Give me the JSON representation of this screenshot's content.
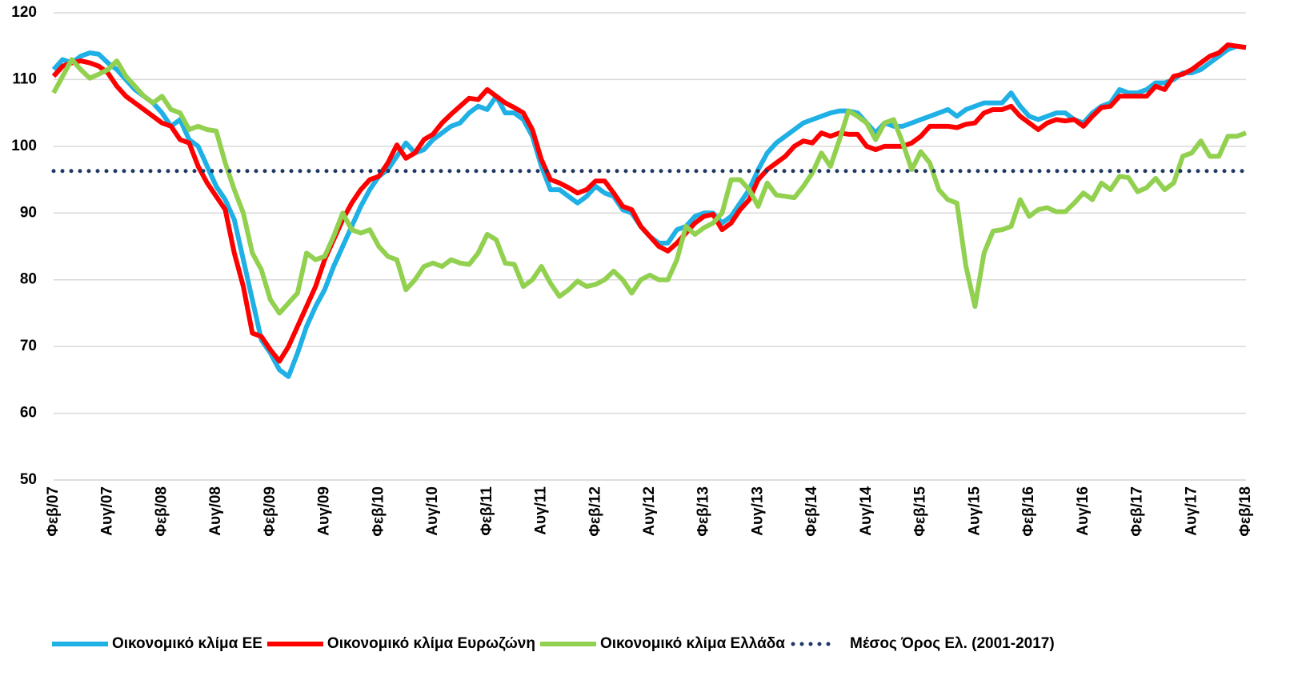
{
  "chart_data": {
    "type": "line",
    "categories": [
      "Φεβ/07",
      null,
      null,
      null,
      null,
      null,
      "Αυγ/07",
      null,
      null,
      null,
      null,
      null,
      "Φεβ/08",
      null,
      null,
      null,
      null,
      null,
      "Αυγ/08",
      null,
      null,
      null,
      null,
      null,
      "Φεβ/09",
      null,
      null,
      null,
      null,
      null,
      "Αυγ/09",
      null,
      null,
      null,
      null,
      null,
      "Φεβ/10",
      null,
      null,
      null,
      null,
      null,
      "Αυγ/10",
      null,
      null,
      null,
      null,
      null,
      "Φεβ/11",
      null,
      null,
      null,
      null,
      null,
      "Αυγ/11",
      null,
      null,
      null,
      null,
      null,
      "Φεβ/12",
      null,
      null,
      null,
      null,
      null,
      "Αυγ/12",
      null,
      null,
      null,
      null,
      null,
      "Φεβ/13",
      null,
      null,
      null,
      null,
      null,
      "Αυγ/13",
      null,
      null,
      null,
      null,
      null,
      "Φεβ/14",
      null,
      null,
      null,
      null,
      null,
      "Αυγ/14",
      null,
      null,
      null,
      null,
      null,
      "Φεβ/15",
      null,
      null,
      null,
      null,
      null,
      "Αυγ/15",
      null,
      null,
      null,
      null,
      null,
      "Φεβ/16",
      null,
      null,
      null,
      null,
      null,
      "Αυγ/16",
      null,
      null,
      null,
      null,
      null,
      "Φεβ/17",
      null,
      null,
      null,
      null,
      null,
      "Αυγ/17",
      null,
      null,
      null,
      null,
      null,
      "Φεβ/18"
    ],
    "series": [
      {
        "name": "Οικονομικό κλίμα ΕΕ",
        "color": "#1fb0e6",
        "values": [
          111.5,
          113,
          112.5,
          113.5,
          114,
          113.8,
          112.5,
          111.5,
          110,
          108.5,
          107.5,
          106.5,
          105,
          103,
          104,
          101,
          100,
          97,
          94,
          92,
          89,
          83,
          77,
          71,
          69,
          66.5,
          65.5,
          69,
          73,
          76,
          78.5,
          82,
          85,
          88,
          91,
          93.5,
          95.5,
          96.5,
          98.5,
          100.5,
          99,
          99.5,
          101,
          102,
          103,
          103.5,
          105,
          106,
          105.5,
          107.5,
          105,
          105,
          104,
          101.5,
          97,
          93.5,
          93.5,
          92.5,
          91.5,
          92.5,
          94,
          93,
          92.5,
          90.5,
          90,
          88,
          86.5,
          85.5,
          85.5,
          87.5,
          88,
          89.5,
          90,
          90,
          88.5,
          89.5,
          91.5,
          93.5,
          96.5,
          99,
          100.5,
          101.5,
          102.5,
          103.5,
          104,
          104.5,
          105,
          105.3,
          105.3,
          105,
          103.5,
          102,
          103.5,
          103,
          103,
          103.5,
          104,
          104.5,
          105,
          105.5,
          104.5,
          105.5,
          106,
          106.5,
          106.5,
          106.5,
          108,
          106,
          104.5,
          104,
          104.5,
          105,
          105,
          104,
          103.5,
          105,
          106,
          106.5,
          108.5,
          108,
          108,
          108.5,
          109.5,
          109.5,
          110,
          111,
          111,
          111.5,
          112.5,
          113.5,
          114.5,
          115,
          114.8
        ]
      },
      {
        "name": "Οικονομικό κλίμα Ευρωζώνη",
        "color": "#ff0000",
        "values": [
          110.5,
          112,
          112.5,
          112.8,
          112.5,
          112,
          111,
          109,
          107.5,
          106.5,
          105.5,
          104.5,
          103.5,
          103,
          101,
          100.5,
          97,
          94.5,
          92.5,
          90.5,
          84,
          79,
          72,
          71.5,
          69.5,
          67.8,
          70,
          73,
          76,
          79,
          83,
          86,
          89,
          91.5,
          93.5,
          95,
          95.5,
          97.5,
          100.2,
          98.2,
          99,
          101,
          101.8,
          103.5,
          104.8,
          106,
          107.2,
          107,
          108.5,
          107.5,
          106.5,
          105.8,
          105,
          102.5,
          98,
          95,
          94.5,
          93.8,
          93,
          93.5,
          94.8,
          94.8,
          93,
          91,
          90.5,
          88,
          86.5,
          85,
          84.3,
          85.5,
          87,
          88.5,
          89.5,
          89.8,
          87.5,
          88.5,
          90.5,
          92,
          95,
          96.5,
          97.5,
          98.5,
          100,
          100.8,
          100.5,
          102,
          101.5,
          102,
          101.8,
          101.8,
          100,
          99.5,
          100,
          100,
          100,
          100.5,
          101.5,
          103,
          103,
          103,
          102.8,
          103.3,
          103.5,
          105,
          105.5,
          105.5,
          106,
          104.5,
          103.5,
          102.5,
          103.5,
          104,
          103.8,
          104,
          103,
          104.5,
          105.8,
          106,
          107.5,
          107.5,
          107.5,
          107.5,
          109,
          108.5,
          110.5,
          110.8,
          111.5,
          112.5,
          113.5,
          114,
          115.2,
          115,
          114.8
        ]
      },
      {
        "name": "Οικονομικό κλίμα Ελλάδα",
        "color": "#92d050",
        "values": [
          108,
          110.5,
          113,
          111.5,
          110.2,
          110.8,
          111.5,
          112.8,
          110.5,
          109,
          107.5,
          106.5,
          107.5,
          105.5,
          105,
          102.5,
          103,
          102.5,
          102.3,
          97.5,
          93.5,
          90,
          84,
          81.5,
          77,
          75,
          76.5,
          78,
          84,
          83,
          83.5,
          86.5,
          90,
          87.5,
          87,
          87.5,
          85,
          83.5,
          83,
          78.5,
          80,
          82,
          82.5,
          82,
          83,
          82.5,
          82.3,
          84,
          86.8,
          86,
          82.5,
          82.3,
          79,
          80,
          82,
          79.5,
          77.5,
          78.5,
          79.8,
          79,
          79.3,
          80,
          81.3,
          80,
          78,
          80,
          80.7,
          80,
          80,
          83,
          88,
          86.8,
          87.8,
          88.5,
          90,
          95,
          95,
          93.5,
          91,
          94.5,
          92.7,
          92.5,
          92.3,
          94,
          96,
          99,
          97,
          101,
          105.3,
          104.5,
          103.5,
          101,
          103.5,
          104,
          100.5,
          96.5,
          99.2,
          97.5,
          93.5,
          92,
          91.5,
          82,
          76,
          84,
          87.3,
          87.5,
          88,
          92,
          89.5,
          90.5,
          90.8,
          90.2,
          90.2,
          91.5,
          93,
          92,
          94.5,
          93.5,
          95.5,
          95.3,
          93.2,
          93.8,
          95.2,
          93.5,
          94.5,
          98.5,
          99,
          100.8,
          98.5,
          98.5,
          101.5,
          101.5,
          102
        ]
      },
      {
        "name": "Μέσος Όρος Ελ. (2001-2017)",
        "color": "#1f3864",
        "dashed": true,
        "values": [
          96.3,
          96.3,
          96.3,
          96.3,
          96.3,
          96.3,
          96.3,
          96.3,
          96.3,
          96.3,
          96.3,
          96.3,
          96.3,
          96.3,
          96.3,
          96.3,
          96.3,
          96.3,
          96.3,
          96.3,
          96.3,
          96.3,
          96.3,
          96.3,
          96.3,
          96.3,
          96.3,
          96.3,
          96.3,
          96.3,
          96.3,
          96.3,
          96.3,
          96.3,
          96.3,
          96.3,
          96.3,
          96.3,
          96.3,
          96.3,
          96.3,
          96.3,
          96.3,
          96.3,
          96.3,
          96.3,
          96.3,
          96.3,
          96.3,
          96.3,
          96.3,
          96.3,
          96.3,
          96.3,
          96.3,
          96.3,
          96.3,
          96.3,
          96.3,
          96.3,
          96.3,
          96.3,
          96.3,
          96.3,
          96.3,
          96.3,
          96.3,
          96.3,
          96.3,
          96.3,
          96.3,
          96.3,
          96.3,
          96.3,
          96.3,
          96.3,
          96.3,
          96.3,
          96.3,
          96.3,
          96.3,
          96.3,
          96.3,
          96.3,
          96.3,
          96.3,
          96.3,
          96.3,
          96.3,
          96.3,
          96.3,
          96.3,
          96.3,
          96.3,
          96.3,
          96.3,
          96.3,
          96.3,
          96.3,
          96.3,
          96.3,
          96.3,
          96.3,
          96.3,
          96.3,
          96.3,
          96.3,
          96.3,
          96.3,
          96.3,
          96.3,
          96.3,
          96.3,
          96.3,
          96.3,
          96.3,
          96.3,
          96.3,
          96.3,
          96.3,
          96.3,
          96.3,
          96.3,
          96.3,
          96.3,
          96.3,
          96.3,
          96.3,
          96.3,
          96.3,
          96.3,
          96.3,
          96.3
        ]
      }
    ],
    "ylim": [
      50,
      120
    ],
    "yticks": [
      50,
      60,
      70,
      80,
      90,
      100,
      110,
      120
    ],
    "grid": true,
    "legend": "bottom"
  }
}
